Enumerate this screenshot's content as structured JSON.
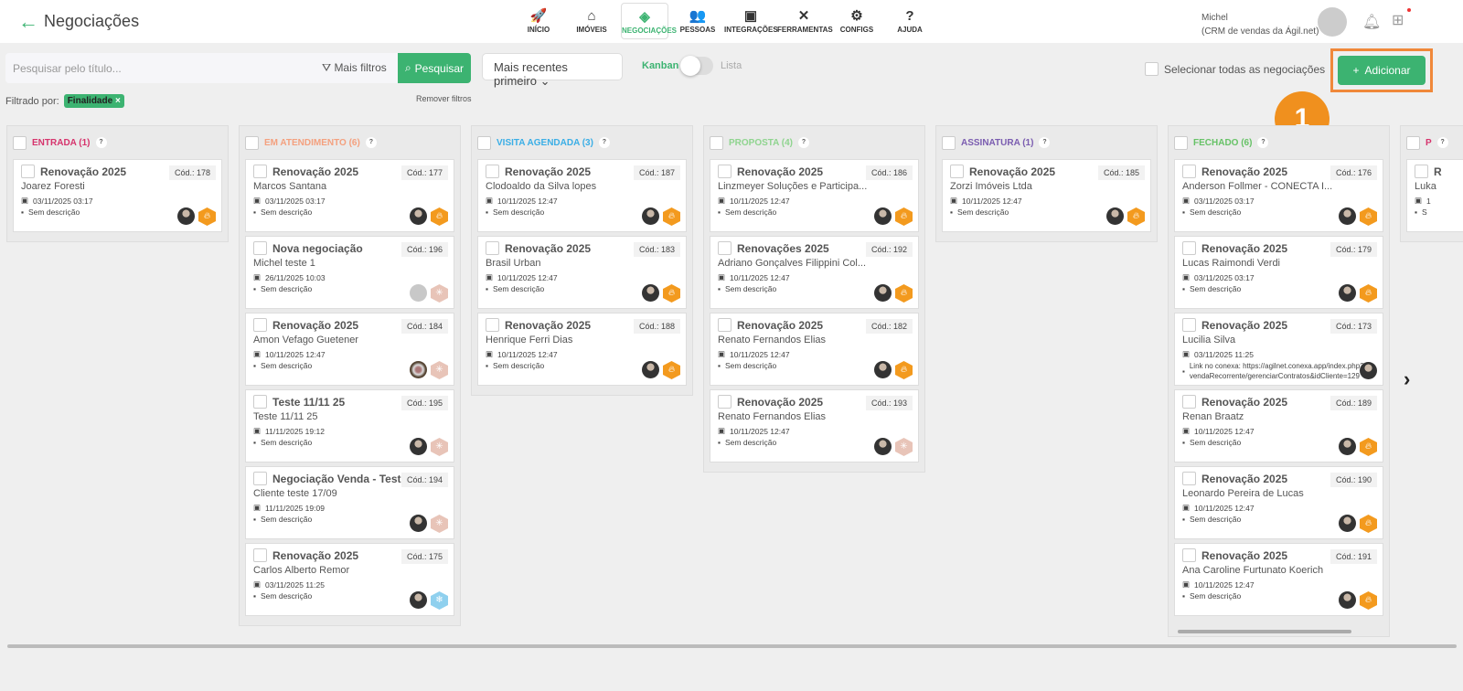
{
  "header": {
    "title": "Negociações",
    "user_name": "Michel",
    "user_org": "(CRM de vendas da Ágil.net)"
  },
  "nav": [
    {
      "label": "INÍCIO",
      "icon": "rocket-icon",
      "glyph": "🚀"
    },
    {
      "label": "IMÓVEIS",
      "icon": "home-icon",
      "glyph": "⌂"
    },
    {
      "label": "NEGOCIAÇÕES",
      "icon": "handshake-icon",
      "glyph": "◈",
      "active": true
    },
    {
      "label": "PESSOAS",
      "icon": "people-icon",
      "glyph": "👥"
    },
    {
      "label": "INTEGRAÇÕES",
      "icon": "integration-icon",
      "glyph": "▣"
    },
    {
      "label": "FERRAMENTAS",
      "icon": "tools-icon",
      "glyph": "✕"
    },
    {
      "label": "CONFIGS",
      "icon": "gear-icon",
      "glyph": "⚙"
    },
    {
      "label": "AJUDA",
      "icon": "help-icon",
      "glyph": "?"
    }
  ],
  "toolbar": {
    "search_placeholder": "Pesquisar pelo título...",
    "filters": "Mais filtros",
    "search_btn": "Pesquisar",
    "sort": "Mais recentes primeiro",
    "kanban": "Kanban",
    "lista": "Lista",
    "select_all": "Selecionar todas as negociações",
    "add": "Adicionar"
  },
  "filter": {
    "label": "Filtrado por:",
    "chip": "Finalidade",
    "remove": "Remover filtros"
  },
  "callout": "1",
  "accent": "#3cb371",
  "columns": [
    {
      "title": "ENTRADA (1)",
      "color": "#d6336c",
      "cards": [
        {
          "title": "Renovação 2025",
          "cod": "Cód.: 178",
          "name": "Joarez Foresti",
          "date": "03/11/2025 03:17",
          "desc": "Sem descrição",
          "avatar": "photo",
          "badge": "hot"
        }
      ]
    },
    {
      "title": "EM ATENDIMENTO (6)",
      "color": "#f4a07e",
      "cards": [
        {
          "title": "Renovação 2025",
          "cod": "Cód.: 177",
          "name": "Marcos Santana",
          "date": "03/11/2025 03:17",
          "desc": "Sem descrição",
          "avatar": "photo",
          "badge": "hot"
        },
        {
          "title": "Nova negociação",
          "cod": "Cód.: 196",
          "name": "Michel teste 1",
          "date": "26/11/2025 10:03",
          "desc": "Sem descrição",
          "avatar": "grey",
          "badge": "warm"
        },
        {
          "title": "Renovação 2025",
          "cod": "Cód.: 184",
          "name": "Amon Vefago Guetener",
          "date": "10/11/2025 12:47",
          "desc": "Sem descrição",
          "avatar": "group",
          "badge": "warm"
        },
        {
          "title": "Teste 11/11 25",
          "cod": "Cód.: 195",
          "name": "Teste 11/11 25",
          "date": "11/11/2025 19:12",
          "desc": "Sem descrição",
          "avatar": "photo",
          "badge": "warm"
        },
        {
          "title": "Negociação Venda - Teste",
          "cod": "Cód.: 194",
          "name": "Cliente teste 17/09",
          "date": "11/11/2025 19:09",
          "desc": "Sem descrição",
          "avatar": "photo",
          "badge": "warm"
        },
        {
          "title": "Renovação 2025",
          "cod": "Cód.: 175",
          "name": "Carlos Alberto Remor",
          "date": "03/11/2025 11:25",
          "desc": "Sem descrição",
          "avatar": "photo",
          "badge": "cold"
        }
      ]
    },
    {
      "title": "VISITA AGENDADA (3)",
      "color": "#3aaee6",
      "cards": [
        {
          "title": "Renovação 2025",
          "cod": "Cód.: 187",
          "name": "Clodoaldo da Silva lopes",
          "date": "10/11/2025 12:47",
          "desc": "Sem descrição",
          "avatar": "photo",
          "badge": "hot"
        },
        {
          "title": "Renovação 2025",
          "cod": "Cód.: 183",
          "name": "Brasil Urban",
          "date": "10/11/2025 12:47",
          "desc": "Sem descrição",
          "avatar": "photo",
          "badge": "hot"
        },
        {
          "title": "Renovação 2025",
          "cod": "Cód.: 188",
          "name": "Henrique Ferri Dias",
          "date": "10/11/2025 12:47",
          "desc": "Sem descrição",
          "avatar": "photo",
          "badge": "hot"
        }
      ]
    },
    {
      "title": "PROPOSTA (4)",
      "color": "#8fd48f",
      "cards": [
        {
          "title": "Renovação 2025",
          "cod": "Cód.: 186",
          "name": "Linzmeyer Soluções e Participa...",
          "date": "10/11/2025 12:47",
          "desc": "Sem descrição",
          "avatar": "photo",
          "badge": "hot"
        },
        {
          "title": "Renovações 2025",
          "cod": "Cód.: 192",
          "name": "Adriano Gonçalves Filippini Col...",
          "date": "10/11/2025 12:47",
          "desc": "Sem descrição",
          "avatar": "photo",
          "badge": "hot"
        },
        {
          "title": "Renovação 2025",
          "cod": "Cód.: 182",
          "name": "Renato Fernandos Elias",
          "date": "10/11/2025 12:47",
          "desc": "Sem descrição",
          "avatar": "photo",
          "badge": "hot"
        },
        {
          "title": "Renovação 2025",
          "cod": "Cód.: 193",
          "name": "Renato Fernandos Elias",
          "date": "10/11/2025 12:47",
          "desc": "Sem descrição",
          "avatar": "photo",
          "badge": "warm"
        }
      ]
    },
    {
      "title": "ASSINATURA (1)",
      "color": "#7a5cb0",
      "cards": [
        {
          "title": "Renovação 2025",
          "cod": "Cód.: 185",
          "name": "Zorzi Imóveis Ltda",
          "date": "10/11/2025 12:47",
          "desc": "Sem descrição",
          "avatar": "photo",
          "badge": "hot"
        }
      ]
    },
    {
      "title": "FECHADO (6)",
      "color": "#66c266",
      "scroll": true,
      "cards": [
        {
          "title": "Renovação 2025",
          "cod": "Cód.: 176",
          "name": "Anderson Follmer - CONECTA I...",
          "date": "03/11/2025 03:17",
          "desc": "Sem descrição",
          "avatar": "photo",
          "badge": "hot"
        },
        {
          "title": "Renovação 2025",
          "cod": "Cód.: 179",
          "name": "Lucas Raimondi Verdi",
          "date": "03/11/2025 03:17",
          "desc": "Sem descrição",
          "avatar": "photo",
          "badge": "hot"
        },
        {
          "title": "Renovação 2025",
          "cod": "Cód.: 173",
          "name": "Lucilia Silva",
          "date": "03/11/2025 11:25",
          "desc": "Link no conexa: https://agilnet.conexa.app/index.php?r=vendaRecorrente/gerenciarContratos&idCliente=129",
          "long": true,
          "avatar": "photo"
        },
        {
          "title": "Renovação 2025",
          "cod": "Cód.: 189",
          "name": "Renan Braatz",
          "date": "10/11/2025 12:47",
          "desc": "Sem descrição",
          "avatar": "photo",
          "badge": "hot"
        },
        {
          "title": "Renovação 2025",
          "cod": "Cód.: 190",
          "name": "Leonardo Pereira de Lucas",
          "date": "10/11/2025 12:47",
          "desc": "Sem descrição",
          "avatar": "photo",
          "badge": "hot"
        },
        {
          "title": "Renovação 2025",
          "cod": "Cód.: 191",
          "name": "Ana Caroline Furtunato Koerich",
          "date": "10/11/2025 12:47",
          "desc": "Sem descrição",
          "avatar": "photo",
          "badge": "hot"
        }
      ]
    },
    {
      "title": "P",
      "color": "#d6336c",
      "cards": [
        {
          "title": "R",
          "cod": "",
          "name": "Luka",
          "date": "1",
          "desc": "S",
          "avatar": "none"
        }
      ]
    }
  ]
}
